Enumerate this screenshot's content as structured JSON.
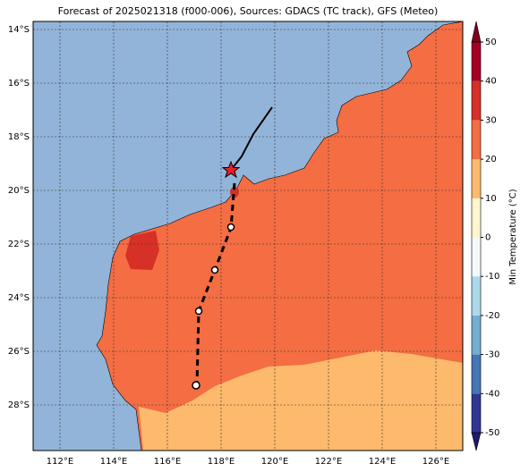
{
  "map": {
    "title": "Forecast of 2025021318 (f000-006), Sources: GDACS (TC track), GFS (Meteo)",
    "lat_labels": [
      "14°S",
      "16°S",
      "18°S",
      "20°S",
      "22°S",
      "24°S",
      "26°S",
      "28°S"
    ],
    "lon_labels": [
      "112°E",
      "114°E",
      "116°E",
      "118°E",
      "120°E",
      "122°E",
      "124°E",
      "126°E"
    ],
    "colorbar": {
      "label": "Min Temperature (°C)",
      "ticks": [
        -50,
        -40,
        -30,
        -20,
        -10,
        0,
        10,
        20,
        30,
        40,
        50
      ],
      "colors": [
        "#313695",
        "#4575b4",
        "#74add1",
        "#abd9e9",
        "#f4f9fb",
        "#fff5cf",
        "#fdb96c",
        "#f46d43",
        "#d73027",
        "#a50026"
      ],
      "under": "#1f1a70",
      "over": "#80001f"
    }
  }
}
